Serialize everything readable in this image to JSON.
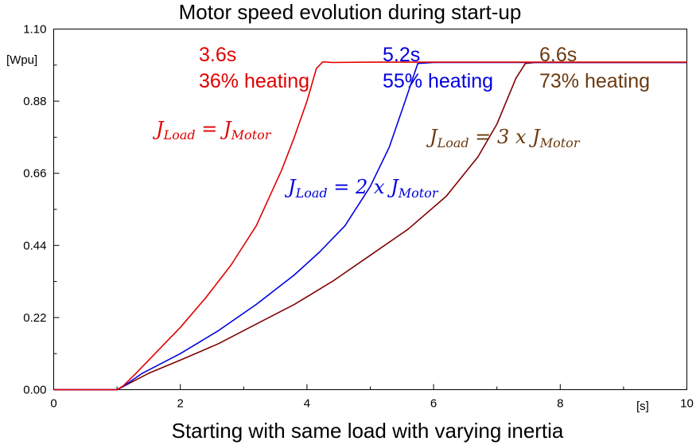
{
  "chart_data": {
    "type": "line",
    "title": "Motor speed evolution during start-up",
    "xlabel": "Starting with same load with varying inertia",
    "x_unit": "[s]",
    "y_unit": "[Wpu]",
    "xlim": [
      0,
      10
    ],
    "ylim": [
      0,
      1.1
    ],
    "x_ticks": [
      0,
      2,
      4,
      6,
      8,
      10
    ],
    "x_tick_labels": [
      "0",
      "2",
      "4",
      "6",
      "8",
      "10"
    ],
    "y_ticks": [
      0.0,
      0.22,
      0.44,
      0.66,
      0.88,
      1.1
    ],
    "y_tick_labels": [
      "0.00",
      "0.22",
      "0.44",
      "0.66",
      "0.88",
      "1.10"
    ],
    "grid": false,
    "series": [
      {
        "color": "#e00000",
        "x": [
          0,
          1.0,
          1.1,
          1.3,
          1.6,
          2.0,
          2.4,
          2.8,
          3.2,
          3.6,
          3.8,
          4.0,
          4.15,
          4.25,
          4.4,
          5.0,
          6.0,
          10.0
        ],
        "y": [
          0,
          0,
          0.012,
          0.05,
          0.11,
          0.19,
          0.28,
          0.38,
          0.5,
          0.67,
          0.77,
          0.88,
          0.98,
          1.0,
          0.998,
          0.999,
          0.999,
          0.999
        ]
      },
      {
        "color": "#0000e0",
        "x": [
          0,
          1.0,
          1.1,
          1.4,
          2.0,
          2.6,
          3.2,
          3.8,
          4.2,
          4.6,
          5.0,
          5.3,
          5.55,
          5.75,
          6.0,
          10.0
        ],
        "y": [
          0,
          0,
          0.01,
          0.05,
          0.11,
          0.18,
          0.26,
          0.35,
          0.42,
          0.5,
          0.62,
          0.74,
          0.88,
          0.995,
          0.998,
          0.998
        ]
      },
      {
        "color": "#800000",
        "x": [
          0,
          1.0,
          1.1,
          1.5,
          2.0,
          2.6,
          3.2,
          3.8,
          4.4,
          5.0,
          5.6,
          6.2,
          6.7,
          7.0,
          7.3,
          7.45,
          7.6,
          10.0
        ],
        "y": [
          0,
          0,
          0.01,
          0.05,
          0.09,
          0.14,
          0.2,
          0.26,
          0.33,
          0.41,
          0.49,
          0.59,
          0.71,
          0.81,
          0.95,
          0.995,
          0.998,
          0.998
        ]
      }
    ],
    "annotations": {
      "red_time": "3.6s",
      "red_heating": "36% heating",
      "blue_time": "5.2s",
      "blue_heating": "55% heating",
      "brown_time": "6.6s",
      "brown_heating": "73% heating"
    },
    "inertia_labels": {
      "red": {
        "j1": "J",
        "sub1": "Load",
        "mid": " = J",
        "sub2": "Motor",
        "color": "#e00000"
      },
      "blue": {
        "j1": "J",
        "sub1": "Load",
        "mid": " = 2 x J",
        "sub2": "Motor",
        "color": "#0000e0"
      },
      "brown": {
        "j1": "J",
        "sub1": "Load",
        "mid": " = 3 x J",
        "sub2": "Motor",
        "color": "#6b3a0f"
      }
    }
  }
}
